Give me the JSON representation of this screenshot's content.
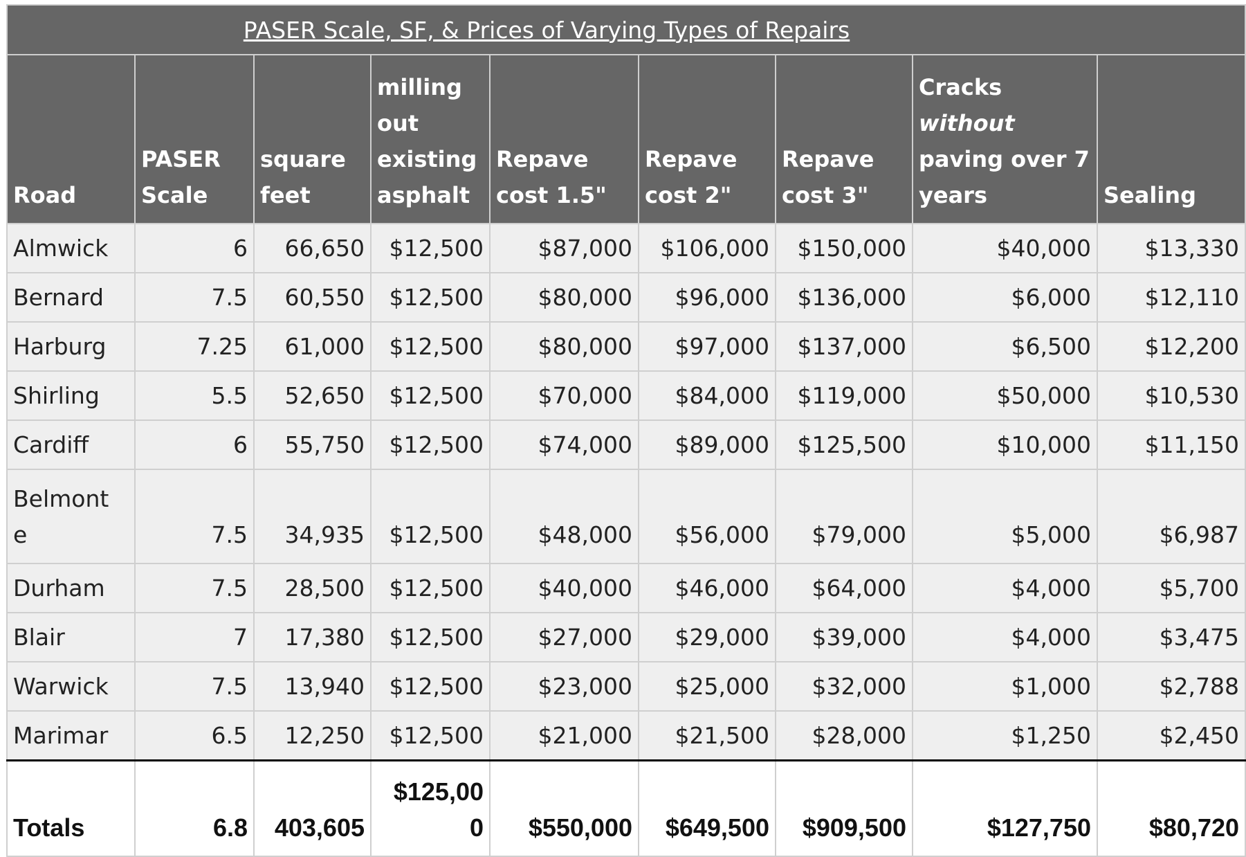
{
  "title": "PASER Scale, SF, & Prices of Varying Types of Repairs",
  "headers": [
    "Road",
    "PASER Scale",
    "square feet",
    "milling out existing asphalt",
    "Repave cost 1.5\"",
    "Repave cost 2\"",
    "Repave cost 3\"",
    "Cracks",
    "without",
    "paving over 7 years",
    "Sealing"
  ],
  "rows": [
    [
      "Almwick",
      "6",
      "66,650",
      "$12,500",
      "$87,000",
      "$106,000",
      "$150,000",
      "$40,000",
      "$13,330"
    ],
    [
      "Bernard",
      "7.5",
      "60,550",
      "$12,500",
      "$80,000",
      "$96,000",
      "$136,000",
      "$6,000",
      "$12,110"
    ],
    [
      "Harburg",
      "7.25",
      "61,000",
      "$12,500",
      "$80,000",
      "$97,000",
      "$137,000",
      "$6,500",
      "$12,200"
    ],
    [
      "Shirling",
      "5.5",
      "52,650",
      "$12,500",
      "$70,000",
      "$84,000",
      "$119,000",
      "$50,000",
      "$10,530"
    ],
    [
      "Cardiff",
      "6",
      "55,750",
      "$12,500",
      "$74,000",
      "$89,000",
      "$125,500",
      "$10,000",
      "$11,150"
    ],
    [
      "Belmonte",
      "7.5",
      "34,935",
      "$12,500",
      "$48,000",
      "$56,000",
      "$79,000",
      "$5,000",
      "$6,987"
    ],
    [
      "Durham",
      "7.5",
      "28,500",
      "$12,500",
      "$40,000",
      "$46,000",
      "$64,000",
      "$4,000",
      "$5,700"
    ],
    [
      "Blair",
      "7",
      "17,380",
      "$12,500",
      "$27,000",
      "$29,000",
      "$39,000",
      "$4,000",
      "$3,475"
    ],
    [
      "Warwick",
      "7.5",
      "13,940",
      "$12,500",
      "$23,000",
      "$25,000",
      "$32,000",
      "$1,000",
      "$2,788"
    ],
    [
      "Marimar",
      "6.5",
      "12,250",
      "$12,500",
      "$21,000",
      "$21,500",
      "$28,000",
      "$1,250",
      "$2,450"
    ]
  ],
  "totals": [
    "Totals",
    "6.8",
    "403,605",
    "$125,000",
    "$550,000",
    "$649,500",
    "$909,500",
    "$127,750",
    "$80,720"
  ]
}
